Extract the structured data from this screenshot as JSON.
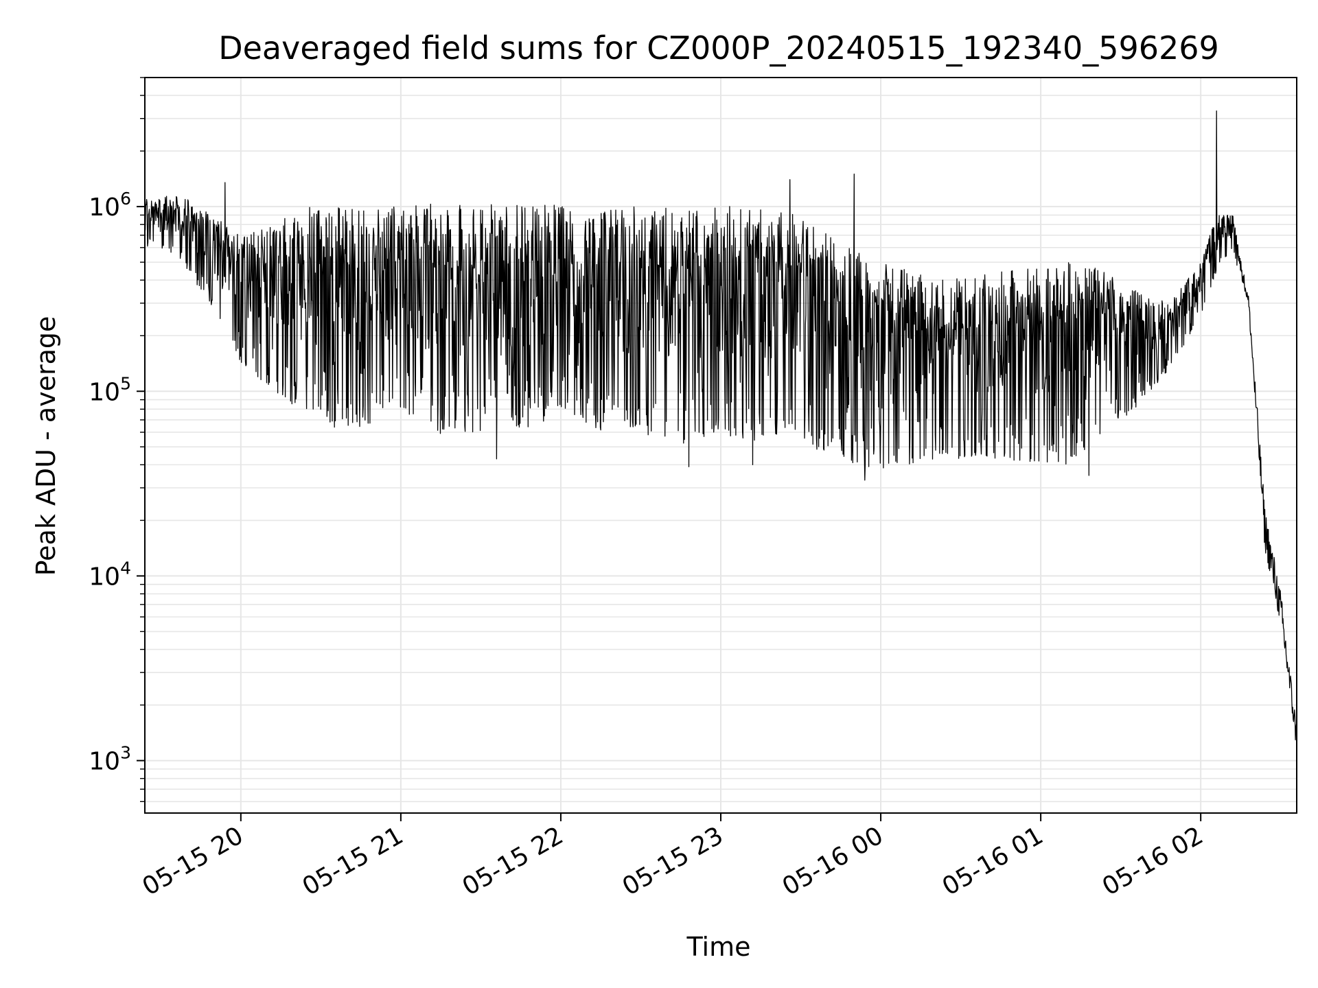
{
  "chart_data": {
    "type": "line",
    "title": "Deaveraged field sums for CZ000P_20240515_192340_596269",
    "xlabel": "Time",
    "ylabel": "Peak ADU - average",
    "yscale": "log",
    "grid": true,
    "line_color": "#000000",
    "grid_color": "#e6e6e6",
    "xlim": [
      "2024-05-15 19:24",
      "2024-05-16 02:36"
    ],
    "ylim": [
      520,
      5000000
    ],
    "x_ticks": [
      {
        "time": "2024-05-15 20:00",
        "label": "05-15 20"
      },
      {
        "time": "2024-05-15 21:00",
        "label": "05-15 21"
      },
      {
        "time": "2024-05-15 22:00",
        "label": "05-15 22"
      },
      {
        "time": "2024-05-15 23:00",
        "label": "05-15 23"
      },
      {
        "time": "2024-05-16 00:00",
        "label": "05-16 00"
      },
      {
        "time": "2024-05-16 01:00",
        "label": "05-16 01"
      },
      {
        "time": "2024-05-16 02:00",
        "label": "05-16 02"
      }
    ],
    "y_ticks": [
      {
        "value": 1000,
        "base": "10",
        "exp": "3"
      },
      {
        "value": 10000,
        "base": "10",
        "exp": "4"
      },
      {
        "value": 100000,
        "base": "10",
        "exp": "5"
      },
      {
        "value": 1000000,
        "base": "10",
        "exp": "6"
      }
    ],
    "envelope": [
      {
        "time": "2024-05-15 19:24",
        "upper": 1100000,
        "lower": 600000
      },
      {
        "time": "2024-05-15 19:36",
        "upper": 1200000,
        "lower": 550000
      },
      {
        "time": "2024-05-15 19:48",
        "upper": 950000,
        "lower": 300000
      },
      {
        "time": "2024-05-15 20:00",
        "upper": 700000,
        "lower": 140000
      },
      {
        "time": "2024-05-15 20:12",
        "upper": 800000,
        "lower": 100000
      },
      {
        "time": "2024-05-15 20:24",
        "upper": 1000000,
        "lower": 75000
      },
      {
        "time": "2024-05-15 20:36",
        "upper": 1000000,
        "lower": 60000
      },
      {
        "time": "2024-05-15 20:48",
        "upper": 1000000,
        "lower": 65000
      },
      {
        "time": "2024-05-15 21:00",
        "upper": 1000000,
        "lower": 80000
      },
      {
        "time": "2024-05-15 21:12",
        "upper": 1050000,
        "lower": 60000
      },
      {
        "time": "2024-05-15 21:24",
        "upper": 1050000,
        "lower": 50000
      },
      {
        "time": "2024-05-15 21:36",
        "upper": 1050000,
        "lower": 70000
      },
      {
        "time": "2024-05-15 21:48",
        "upper": 1050000,
        "lower": 60000
      },
      {
        "time": "2024-05-15 22:00",
        "upper": 1050000,
        "lower": 80000
      },
      {
        "time": "2024-05-15 22:12",
        "upper": 1050000,
        "lower": 60000
      },
      {
        "time": "2024-05-15 22:24",
        "upper": 1000000,
        "lower": 60000
      },
      {
        "time": "2024-05-15 22:36",
        "upper": 1000000,
        "lower": 55000
      },
      {
        "time": "2024-05-15 22:48",
        "upper": 1000000,
        "lower": 50000
      },
      {
        "time": "2024-05-15 23:00",
        "upper": 1050000,
        "lower": 60000
      },
      {
        "time": "2024-05-15 23:12",
        "upper": 1000000,
        "lower": 50000
      },
      {
        "time": "2024-05-15 23:24",
        "upper": 950000,
        "lower": 60000
      },
      {
        "time": "2024-05-15 23:36",
        "upper": 800000,
        "lower": 45000
      },
      {
        "time": "2024-05-15 23:48",
        "upper": 600000,
        "lower": 40000
      },
      {
        "time": "2024-05-16 00:00",
        "upper": 500000,
        "lower": 38000
      },
      {
        "time": "2024-05-16 00:12",
        "upper": 450000,
        "lower": 40000
      },
      {
        "time": "2024-05-16 00:24",
        "upper": 400000,
        "lower": 42000
      },
      {
        "time": "2024-05-16 00:36",
        "upper": 420000,
        "lower": 42000
      },
      {
        "time": "2024-05-16 00:48",
        "upper": 450000,
        "lower": 42000
      },
      {
        "time": "2024-05-16 01:00",
        "upper": 480000,
        "lower": 40000
      },
      {
        "time": "2024-05-16 01:12",
        "upper": 500000,
        "lower": 40000
      },
      {
        "time": "2024-05-16 01:24",
        "upper": 450000,
        "lower": 60000
      },
      {
        "time": "2024-05-16 01:36",
        "upper": 350000,
        "lower": 80000
      },
      {
        "time": "2024-05-16 01:48",
        "upper": 300000,
        "lower": 130000
      },
      {
        "time": "2024-05-16 02:00",
        "upper": 500000,
        "lower": 250000
      },
      {
        "time": "2024-05-16 02:06",
        "upper": 900000,
        "lower": 450000
      },
      {
        "time": "2024-05-16 02:12",
        "upper": 900000,
        "lower": 600000
      },
      {
        "time": "2024-05-16 02:18",
        "upper": 350000,
        "lower": 250000
      },
      {
        "time": "2024-05-16 02:24",
        "upper": 30000,
        "lower": 10000
      },
      {
        "time": "2024-05-16 02:30",
        "upper": 10000,
        "lower": 4000
      },
      {
        "time": "2024-05-16 02:36",
        "upper": 1800,
        "lower": 900
      }
    ],
    "spikes": [
      {
        "time": "2024-05-15 19:54",
        "value": 1350000
      },
      {
        "time": "2024-05-15 23:26",
        "value": 1400000
      },
      {
        "time": "2024-05-15 23:50",
        "value": 1500000
      },
      {
        "time": "2024-05-16 02:06",
        "value": 3300000
      },
      {
        "time": "2024-05-15 21:36",
        "value": 43000
      },
      {
        "time": "2024-05-15 22:48",
        "value": 39000
      },
      {
        "time": "2024-05-15 23:12",
        "value": 40000
      },
      {
        "time": "2024-05-15 23:54",
        "value": 33000
      },
      {
        "time": "2024-05-16 01:18",
        "value": 35000
      }
    ]
  }
}
